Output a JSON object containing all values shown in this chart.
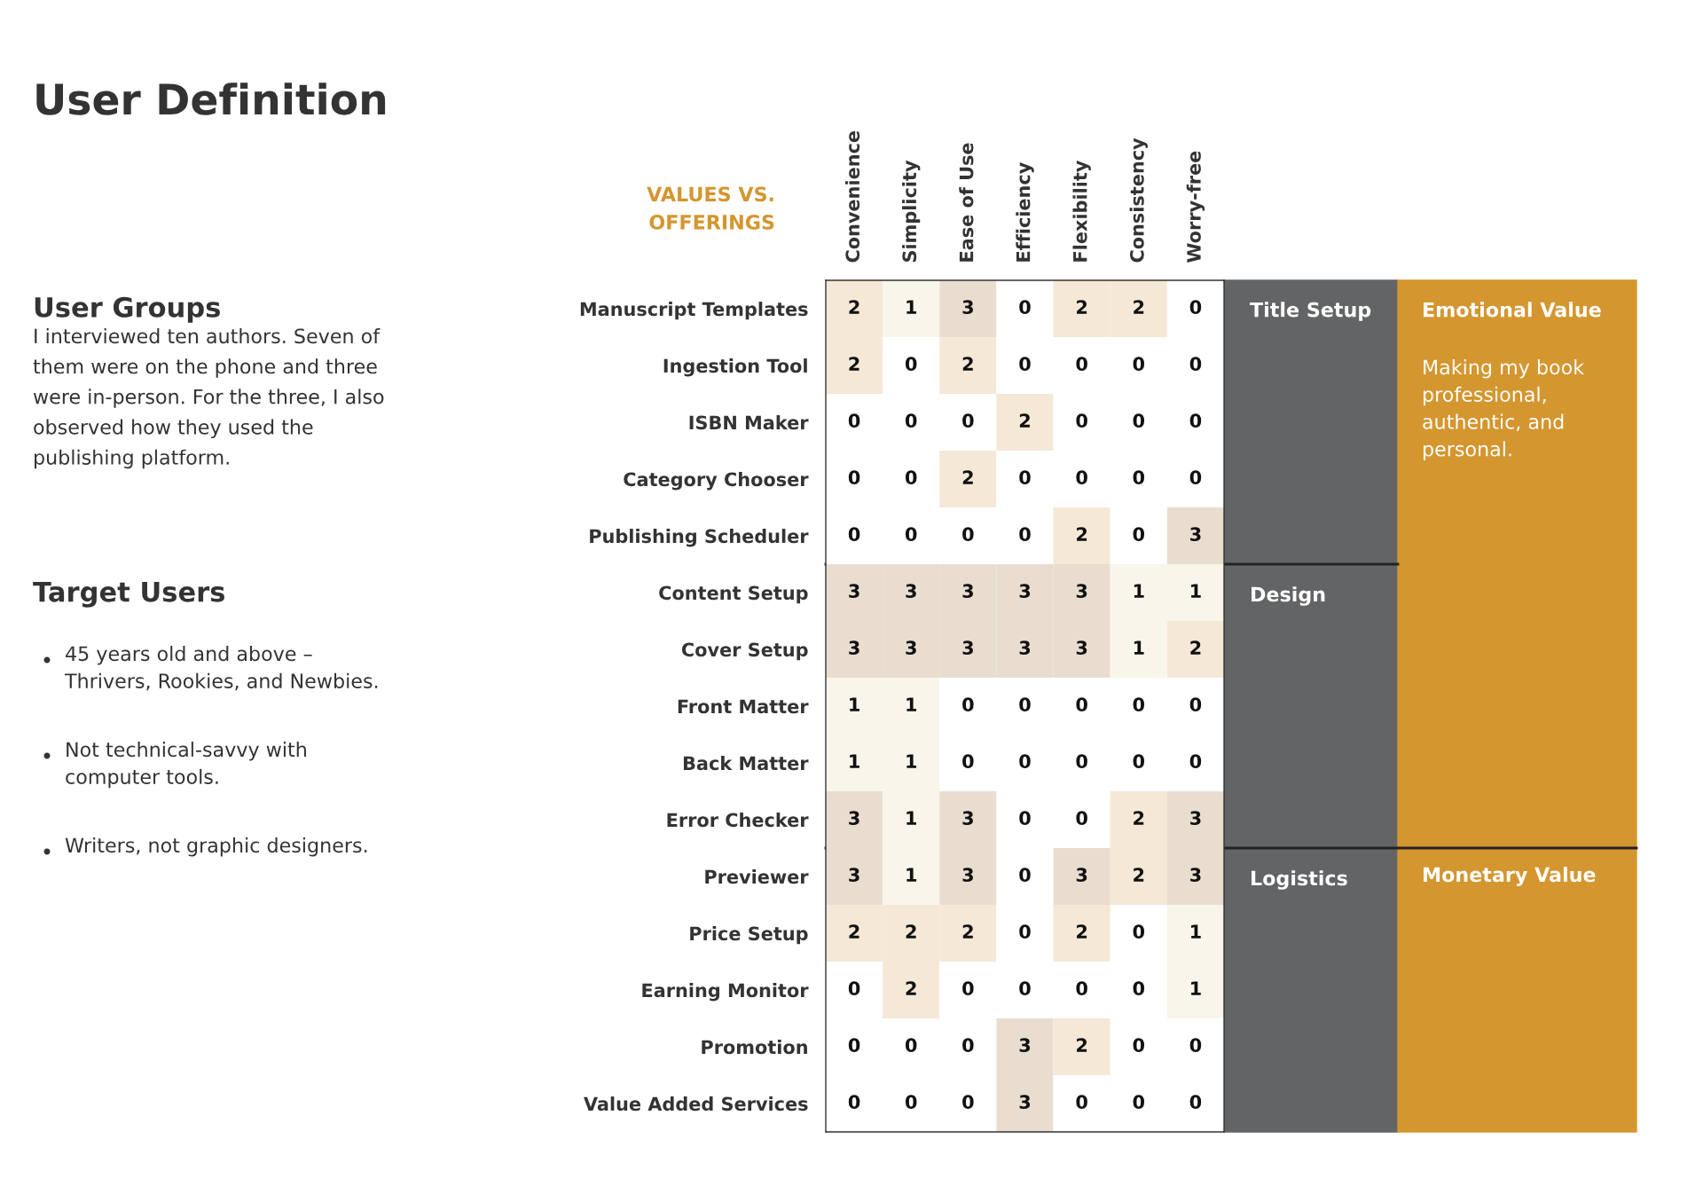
{
  "chart_data": {
    "type": "heatmap",
    "title": "User Definition",
    "categories": [
      "Convenience",
      "Simplicity",
      "Ease of Use",
      "Efficiency",
      "Flexibility",
      "Consistency",
      "Worry-free"
    ],
    "y_categories": [
      "Manuscript Templates",
      "Ingestion Tool",
      "ISBN Maker",
      "Category Chooser",
      "Publishing Scheduler",
      "Content Setup",
      "Cover Setup",
      "Front Matter",
      "Back Matter",
      "Error Checker",
      "Previewer",
      "Price Setup",
      "Earning Monitor",
      "Promotion",
      "Value Added Services"
    ],
    "cells": [
      [
        2,
        1,
        3,
        0,
        2,
        2,
        0
      ],
      [
        2,
        0,
        2,
        0,
        0,
        0,
        0
      ],
      [
        0,
        0,
        0,
        2,
        0,
        0,
        0
      ],
      [
        0,
        0,
        2,
        0,
        0,
        0,
        0
      ],
      [
        0,
        0,
        0,
        0,
        2,
        0,
        3
      ],
      [
        3,
        3,
        3,
        3,
        3,
        1,
        1
      ],
      [
        3,
        3,
        3,
        3,
        3,
        1,
        2
      ],
      [
        1,
        1,
        0,
        0,
        0,
        0,
        0
      ],
      [
        1,
        1,
        0,
        0,
        0,
        0,
        0
      ],
      [
        3,
        1,
        3,
        0,
        0,
        2,
        3
      ],
      [
        3,
        1,
        3,
        0,
        3,
        2,
        3
      ],
      [
        2,
        2,
        2,
        0,
        2,
        0,
        1
      ],
      [
        0,
        2,
        0,
        0,
        0,
        0,
        1
      ],
      [
        0,
        0,
        0,
        3,
        2,
        0,
        0
      ],
      [
        0,
        0,
        0,
        3,
        0,
        0,
        0
      ]
    ],
    "colors": [
      "#ffffff",
      "#f8f6ea",
      "#f5e8d6",
      "#e9ddd0"
    ],
    "data_labels": true,
    "annotations": [
      "User Groups",
      "I interviewed ten authors. Seven of\nthem were on the phone and three\nwere in-person. For the three, I also\nobserved how they used the\npublishing platform.",
      "Target Users",
      "45 years old and above –\nThrivers, Rookies, and Newbies.",
      "Not technical-savvy with\ncomputer tools.",
      "Writers, not graphic designers.",
      "VALUES VS.\nOFFERINGS",
      "Title Setup",
      "Design",
      "Logistics",
      "Emotional Value",
      "Making my book\nprofessional,\nauthentic, and\npersonal.",
      "Monetary Value"
    ]
  }
}
